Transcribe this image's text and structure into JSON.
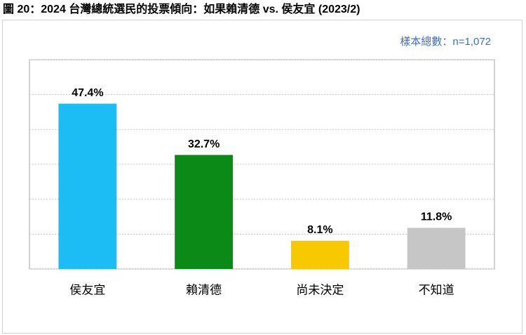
{
  "chart_data": {
    "type": "bar",
    "title": "圖 20：2024 台灣總統選民的投票傾向：如果賴清德  vs.  侯友宜  (2023/2)",
    "note": "樣本總數：n=1,072",
    "categories": [
      "侯友宜",
      "賴清德",
      "尚未決定",
      "不知道"
    ],
    "values": [
      47.4,
      32.7,
      8.1,
      11.8
    ],
    "value_labels": [
      "47.4%",
      "32.7%",
      "8.1%",
      "11.8%"
    ],
    "colors": [
      "#1cbcf4",
      "#0b8a17",
      "#f8c800",
      "#c6c6c6"
    ],
    "ylim": [
      0,
      60
    ],
    "yticks": [
      0,
      10,
      20,
      30,
      40,
      50,
      60
    ],
    "grid": true,
    "show_tick_labels": false
  }
}
